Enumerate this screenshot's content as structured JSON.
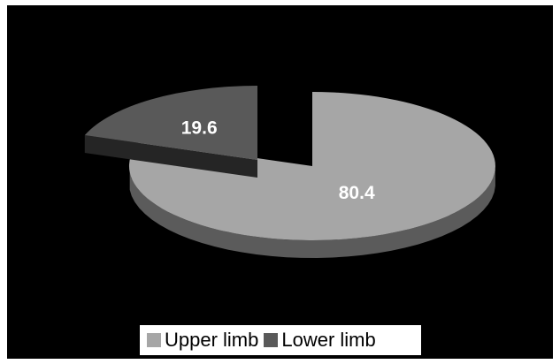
{
  "chart_data": {
    "type": "pie",
    "categories": [
      "Upper limb",
      "Lower limb"
    ],
    "values": [
      80.4,
      19.6
    ],
    "data_labels": [
      "80.4",
      "19.6"
    ],
    "exploded": [
      "Lower limb"
    ],
    "style": "3d",
    "colors": {
      "Upper limb": "#a6a6a6",
      "Lower limb": "#595959",
      "background": "#000000"
    },
    "legend": {
      "position": "bottom",
      "items": [
        {
          "label": "Upper limb",
          "color": "#a6a6a6"
        },
        {
          "label": "Lower limb",
          "color": "#595959"
        }
      ]
    }
  }
}
